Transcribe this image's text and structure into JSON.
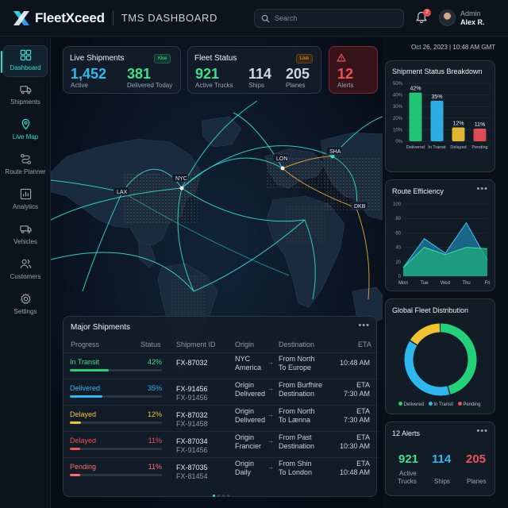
{
  "app": {
    "brand": "FleetXceed",
    "title": "TMS DASHBOARD"
  },
  "search": {
    "placeholder": "Search"
  },
  "notifications": {
    "count": "2"
  },
  "user": {
    "role": "Admin",
    "name": "Alex R."
  },
  "timestamp": "Oct 26, 2023 | 10:48 AM GMT",
  "sidebar": {
    "items": [
      {
        "label": "Dashboard",
        "icon": "dashboard-icon",
        "active": true
      },
      {
        "label": "Shipments",
        "icon": "truck-icon"
      },
      {
        "label": "Live Map",
        "icon": "map-pin-icon"
      },
      {
        "label": "Route Planner",
        "icon": "route-icon"
      },
      {
        "label": "Analytics",
        "icon": "analytics-icon"
      },
      {
        "label": "Vehicles",
        "icon": "vehicle-icon"
      },
      {
        "label": "Customers",
        "icon": "customers-icon"
      },
      {
        "label": "Settings",
        "icon": "gear-icon"
      }
    ]
  },
  "live_shipments": {
    "title": "Live Shipments",
    "badge": "Kkw",
    "active_value": "1,452",
    "active_label": "Active",
    "delivered_value": "381",
    "delivered_label": "Delivered Today"
  },
  "fleet_status": {
    "title": "Fleet Status",
    "badge": "Live",
    "trucks_value": "921",
    "trucks_label": "Active Trucks",
    "ships_value": "114",
    "ships_label": "Ships",
    "planes_value": "205",
    "planes_label": "Planes"
  },
  "alerts_card": {
    "value": "12",
    "label": "Alerts"
  },
  "map": {
    "cities": [
      "NYC",
      "LON",
      "SHA",
      "LAX",
      "DKB"
    ]
  },
  "shipment_breakdown": {
    "title": "Shipment Status Breakdown"
  },
  "route_efficiency": {
    "title": "Route Efficiency"
  },
  "global_fleet": {
    "title": "Global Fleet Distribution",
    "legend": [
      "Delivered",
      "In Transit",
      "Pending"
    ]
  },
  "alerts_panel": {
    "title": "12 Alerts",
    "stats": [
      {
        "value": "921",
        "label_line1": "Active",
        "label_line2": "Trucks"
      },
      {
        "value": "114",
        "label_line1": "Ships",
        "label_line2": ""
      },
      {
        "value": "205",
        "label_line1": "Planes",
        "label_line2": ""
      }
    ]
  },
  "major_shipments": {
    "title": "Major Shipments",
    "columns": [
      "Progress",
      "Status",
      "Shipment ID",
      "Origin",
      "Destination",
      "ETA"
    ],
    "rows": [
      {
        "status": "In Transit",
        "pct": "42%",
        "progress": 0.42,
        "id1": "FX-87032",
        "id2": "",
        "origin1": "NYC",
        "origin2": "America",
        "dest1": "From North",
        "dest2": "To Europe",
        "eta1": "10:48 AM",
        "eta2": ""
      },
      {
        "status": "Delivered",
        "pct": "35%",
        "progress": 0.35,
        "id1": "FX-91456",
        "id2": "FX-91456",
        "origin1": "Origin",
        "origin2": "Delivered",
        "dest1": "From Burfhire",
        "dest2": "Destination",
        "eta1": "ETA",
        "eta2": "7:30 AM"
      },
      {
        "status": "Delayed",
        "pct": "12%",
        "progress": 0.12,
        "id1": "FX-87032",
        "id2": "FX-91458",
        "origin1": "Origin",
        "origin2": "Delivered",
        "dest1": "From North",
        "dest2": "To Lænna",
        "eta1": "ETA",
        "eta2": "7:30 AM"
      },
      {
        "status": "Delayed",
        "pct": "11%",
        "progress": 0.11,
        "id1": "FX-87034",
        "id2": "FX-91456",
        "origin1": "Origin",
        "origin2": "Francier",
        "dest1": "From Past",
        "dest2": "Destination",
        "eta1": "ETA",
        "eta2": "10:30 AM"
      },
      {
        "status": "Pending",
        "pct": "11%",
        "progress": 0.11,
        "id1": "FX-87035",
        "id2": "FX-81454",
        "origin1": "Origin",
        "origin2": "Daily",
        "dest1": "From Shin",
        "dest2": "To London",
        "eta1": "ETA",
        "eta2": "10:48 AM"
      }
    ]
  },
  "colors": {
    "accent": "#2ee0d3",
    "green": "#22d17a",
    "blue": "#2fb8f0",
    "yellow": "#f2c230",
    "red": "#f0505a",
    "pending": "#ff6b6b"
  },
  "chart_data": [
    {
      "type": "bar",
      "title": "Shipment Status Breakdown",
      "categories": [
        "Delivered",
        "In Transit",
        "Delayed",
        "Pending"
      ],
      "values": [
        42,
        35,
        12,
        11
      ],
      "data_labels": [
        "42%",
        "35%",
        "12%",
        "11%"
      ],
      "ylim": [
        0,
        50
      ],
      "yticks": [
        "0%",
        "10%",
        "20%",
        "30%",
        "40%",
        "50%"
      ],
      "colors": [
        "#22d17a",
        "#2fb8f0",
        "#f2c230",
        "#f0505a"
      ]
    },
    {
      "type": "area",
      "title": "Route Efficiency",
      "categories": [
        "Mon",
        "Tue",
        "Wed",
        "Thu",
        "Fri"
      ],
      "series": [
        {
          "values": [
            12,
            52,
            32,
            74,
            22
          ]
        },
        {
          "values": [
            12,
            40,
            30,
            40,
            38
          ]
        }
      ],
      "ylim": [
        0,
        100
      ],
      "yticks": [
        "0",
        "20",
        "40",
        "60",
        "80",
        "100"
      ]
    },
    {
      "type": "pie",
      "title": "Global Fleet Distribution",
      "categories": [
        "Delivered",
        "In Transit",
        "Pending"
      ],
      "values": [
        46,
        38,
        16
      ],
      "colors": [
        "#22d17a",
        "#2fb8f0",
        "#f2c230"
      ]
    }
  ]
}
